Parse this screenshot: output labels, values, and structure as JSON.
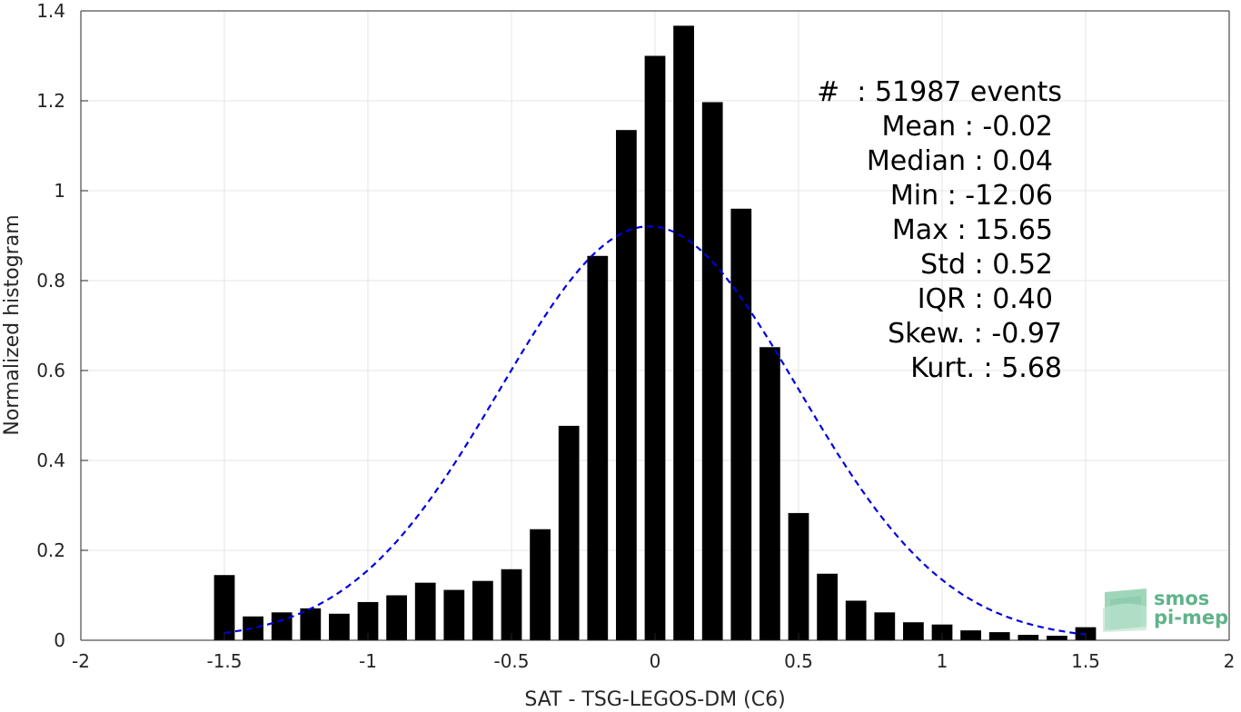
{
  "chart_data": {
    "type": "bar",
    "xlabel": "SAT - TSG-LEGOS-DM (C6)",
    "ylabel": "Normalized histogram",
    "xlim": [
      -2,
      2
    ],
    "ylim": [
      0,
      1.4
    ],
    "grid": true,
    "x_ticks": [
      -2,
      -1.5,
      -1,
      -0.5,
      0,
      0.5,
      1,
      1.5,
      2
    ],
    "x_tick_labels": [
      "-2",
      "-1.5",
      "-1",
      "-0.5",
      "0",
      "0.5",
      "1",
      "1.5",
      "2"
    ],
    "y_ticks": [
      0,
      0.2,
      0.4,
      0.6,
      0.8,
      1,
      1.2,
      1.4
    ],
    "y_tick_labels": [
      "0",
      "0.2",
      "0.4",
      "0.6",
      "0.8",
      "1",
      "1.2",
      "1.4"
    ],
    "bin_width": 0.1,
    "bar_color": "#000000",
    "bins": [
      -1.5,
      -1.4,
      -1.3,
      -1.2,
      -1.1,
      -1.0,
      -0.9,
      -0.8,
      -0.7,
      -0.6,
      -0.5,
      -0.4,
      -0.3,
      -0.2,
      -0.1,
      0.0,
      0.1,
      0.2,
      0.3,
      0.4,
      0.5,
      0.6,
      0.7,
      0.8,
      0.9,
      1.0,
      1.1,
      1.2,
      1.3,
      1.4,
      1.5
    ],
    "values": [
      0.145,
      0.053,
      0.062,
      0.071,
      0.059,
      0.085,
      0.1,
      0.128,
      0.112,
      0.132,
      0.158,
      0.247,
      0.477,
      0.855,
      1.135,
      1.3,
      1.367,
      1.197,
      0.96,
      0.652,
      0.283,
      0.148,
      0.088,
      0.062,
      0.04,
      0.035,
      0.022,
      0.018,
      0.012,
      0.01,
      0.029
    ],
    "fit_curve": {
      "style": "dashed",
      "color": "#0000e0",
      "mean": -0.02,
      "std": 0.52,
      "x_range": [
        -1.5,
        1.5
      ]
    },
    "annotations": [
      "#  : 51987 events",
      "Mean : -0.02",
      "Median : 0.04",
      "Min : -12.06",
      "Max : 15.65",
      "Std : 0.52",
      "IQR : 0.40",
      "Skew. : -0.97",
      "Kurt. : 5.68"
    ]
  },
  "logo": {
    "line1": "smos",
    "line2": "pi-mep",
    "color": "#5fb38a"
  }
}
